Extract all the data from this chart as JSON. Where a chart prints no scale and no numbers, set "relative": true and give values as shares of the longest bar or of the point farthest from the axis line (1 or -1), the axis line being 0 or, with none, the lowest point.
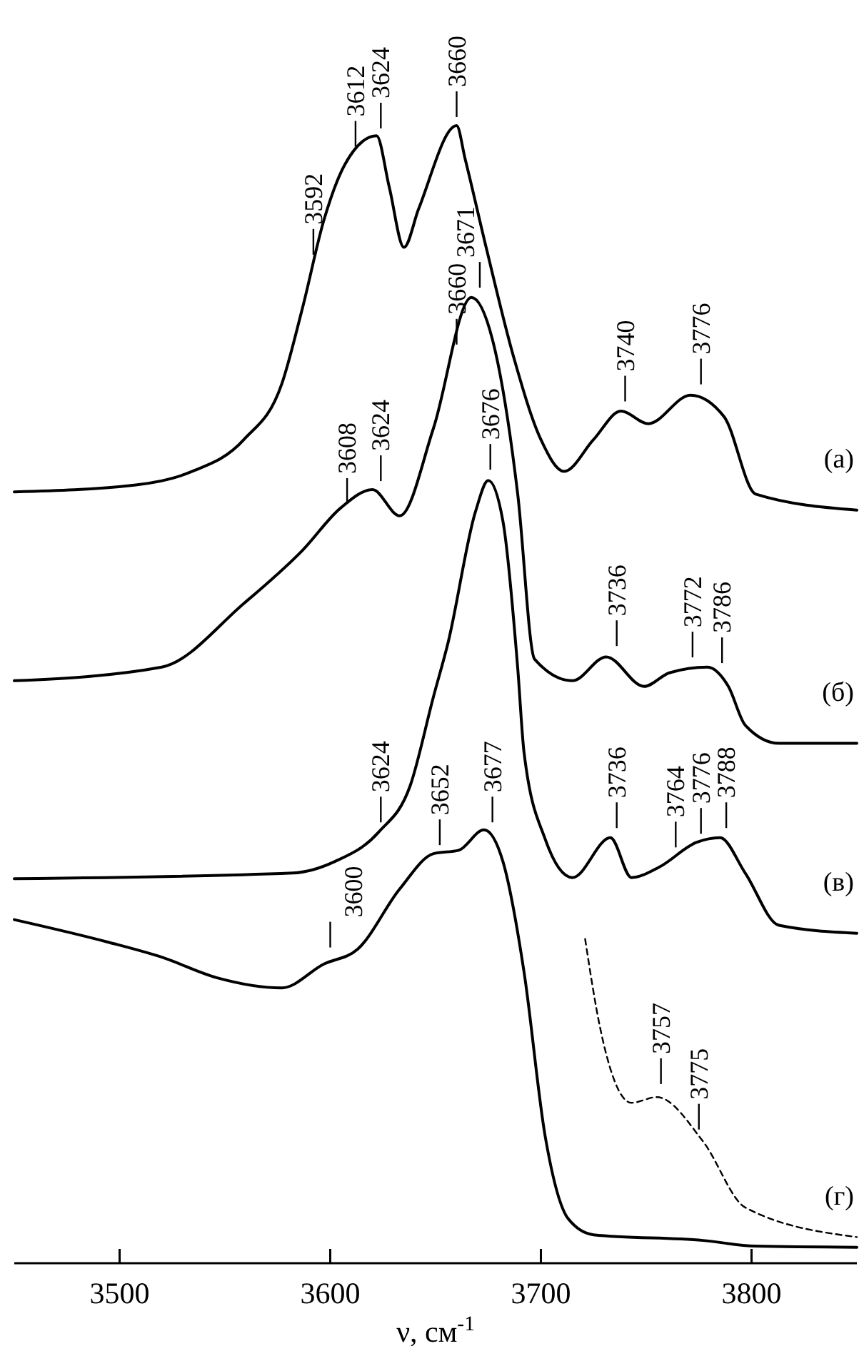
{
  "chart_data": {
    "type": "line",
    "relative": true,
    "xlabel": "ν, см$^{-1}$",
    "xlim": [
      3450,
      3850
    ],
    "xticks": [
      3500,
      3600,
      3700,
      3800
    ],
    "grid": false,
    "legend": false,
    "marker": "none",
    "series": [
      {
        "name": "(а)",
        "color": "#000000",
        "x": [
          3450,
          3507,
          3533,
          3559,
          3577,
          3587,
          3597,
          3607,
          3622,
          3628,
          3635,
          3642,
          3660,
          3664,
          3674,
          3687,
          3700,
          3711,
          3725,
          3738,
          3751,
          3771,
          3787,
          3802,
          3850
        ],
        "values": [
          0.678,
          0.684,
          0.695,
          0.724,
          0.773,
          0.841,
          0.917,
          0.966,
          0.991,
          0.946,
          0.893,
          0.927,
          1.0,
          0.971,
          0.893,
          0.797,
          0.724,
          0.696,
          0.724,
          0.749,
          0.738,
          0.763,
          0.744,
          0.676,
          0.662
        ]
      },
      {
        "name": "(б)",
        "color": "#000000",
        "x": [
          3450,
          3520,
          3559,
          3587,
          3605,
          3620,
          3633,
          3649,
          3667,
          3677,
          3689,
          3697,
          3715,
          3731,
          3749,
          3761,
          3779,
          3789,
          3797,
          3813,
          3850
        ],
        "values": [
          0.512,
          0.524,
          0.58,
          0.627,
          0.664,
          0.68,
          0.657,
          0.734,
          0.849,
          0.812,
          0.676,
          0.531,
          0.512,
          0.533,
          0.507,
          0.519,
          0.524,
          0.507,
          0.473,
          0.457,
          0.457
        ]
      },
      {
        "name": "(в)",
        "color": "#000000",
        "x": [
          3450,
          3582,
          3602,
          3623,
          3638,
          3649,
          3656,
          3669,
          3675,
          3682,
          3689,
          3692,
          3702,
          3715,
          3733,
          3743,
          3756,
          3774,
          3785,
          3797,
          3813,
          3850
        ],
        "values": [
          0.338,
          0.343,
          0.353,
          0.379,
          0.42,
          0.498,
          0.546,
          0.661,
          0.688,
          0.652,
          0.523,
          0.449,
          0.373,
          0.339,
          0.374,
          0.339,
          0.348,
          0.37,
          0.374,
          0.343,
          0.297,
          0.29
        ]
      },
      {
        "name": "(г)",
        "color": "#000000",
        "x": [
          3450,
          3495,
          3520,
          3546,
          3577,
          3597,
          3613,
          3633,
          3649,
          3661,
          3673,
          3682,
          3692,
          3702,
          3713,
          3725,
          3777,
          3802,
          3850
        ],
        "values": [
          0.302,
          0.282,
          0.269,
          0.251,
          0.242,
          0.263,
          0.276,
          0.329,
          0.36,
          0.363,
          0.381,
          0.353,
          0.256,
          0.112,
          0.039,
          0.025,
          0.02,
          0.015,
          0.014
        ]
      },
      {
        "color": "#000000",
        "line_style": "dashed",
        "x": [
          3721,
          3728,
          3743,
          3755,
          3777,
          3797,
          3850
        ],
        "values": [
          0.285,
          0.208,
          0.141,
          0.146,
          0.107,
          0.049,
          0.023
        ]
      }
    ],
    "line_style": "solid",
    "annotations": [
      {
        "text": "3592",
        "x": 3592,
        "y": 0.879
      },
      {
        "text": "3612",
        "x": 3612,
        "y": 0.974
      },
      {
        "text": "3624",
        "x": 3624,
        "y": 0.99
      },
      {
        "text": "3660",
        "x": 3660,
        "y": 1.0
      },
      {
        "text": "3740",
        "x": 3740,
        "y": 0.75
      },
      {
        "text": "3776",
        "x": 3776,
        "y": 0.765
      },
      {
        "text": "3608",
        "x": 3608,
        "y": 0.66
      },
      {
        "text": "3624",
        "x": 3624,
        "y": 0.68
      },
      {
        "text": "3660",
        "x": 3660,
        "y": 0.8
      },
      {
        "text": "3671",
        "x": 3671,
        "y": 0.85
      },
      {
        "text": "3736",
        "x": 3736,
        "y": 0.535
      },
      {
        "text": "3772",
        "x": 3772,
        "y": 0.525
      },
      {
        "text": "3786",
        "x": 3786,
        "y": 0.52
      },
      {
        "text": "3624",
        "x": 3624,
        "y": 0.38
      },
      {
        "text": "3676",
        "x": 3676,
        "y": 0.69
      },
      {
        "text": "3736",
        "x": 3736,
        "y": 0.375
      },
      {
        "text": "3764",
        "x": 3764,
        "y": 0.358
      },
      {
        "text": "3776",
        "x": 3776,
        "y": 0.37
      },
      {
        "text": "3788",
        "x": 3788,
        "y": 0.375
      },
      {
        "text": "3600",
        "x": 3600,
        "y": 0.27
      },
      {
        "text": "3652",
        "x": 3652,
        "y": 0.36
      },
      {
        "text": "3677",
        "x": 3677,
        "y": 0.38
      },
      {
        "text": "3757",
        "x": 3757,
        "y": 0.15
      },
      {
        "text": "3775",
        "x": 3775,
        "y": 0.11
      }
    ]
  }
}
